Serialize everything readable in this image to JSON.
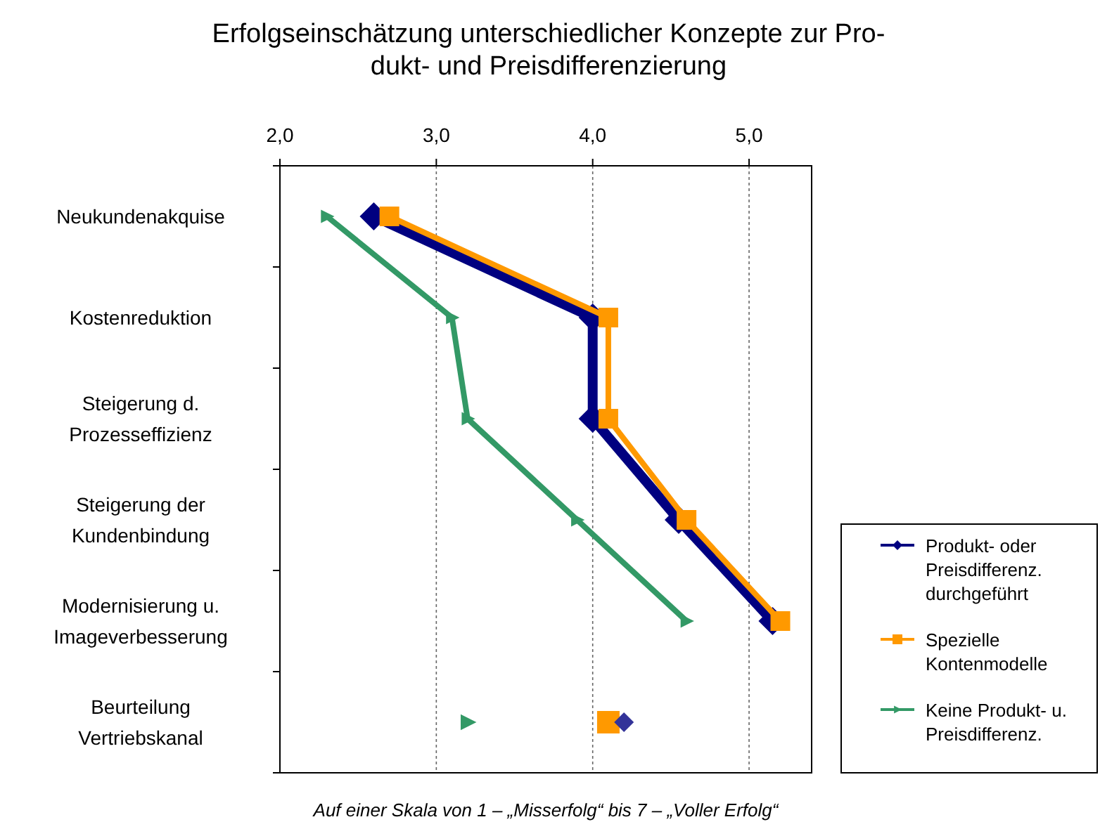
{
  "chart_data": {
    "type": "line",
    "orientation": "horizontal",
    "title": "Erfolgseinschätzung unterschiedlicher Konzepte zur Pro-\ndukt- und Preisdifferenzierung",
    "categories": [
      "Neukundenakquise",
      "Kostenreduktion",
      "Steigerung d. Prozesseffizienz",
      "Steigerung der Kundenbindung",
      "Modernisierung u. Imageverbesserung",
      "Beurteilung Vertriebskanal"
    ],
    "series": [
      {
        "name": "Produkt- oder Preisdifferenz. durchgeführt",
        "color": "#000080",
        "marker": "diamond",
        "values": [
          2.6,
          4.0,
          4.0,
          4.55,
          5.15,
          null
        ]
      },
      {
        "name": "Spezielle Kontenmodelle",
        "color": "#ff9900",
        "marker": "square",
        "values": [
          2.7,
          4.1,
          4.1,
          4.6,
          5.2,
          null
        ]
      },
      {
        "name": "Keine Produkt- u. Preisdifferenz.",
        "color": "#339966",
        "marker": "triangle",
        "values": [
          2.3,
          3.1,
          3.2,
          3.9,
          4.6,
          null
        ]
      },
      {
        "type": "scatter",
        "color": "#ff9900",
        "marker": "square",
        "values": [
          null,
          null,
          null,
          null,
          null,
          4.1
        ]
      },
      {
        "type": "scatter",
        "color": "#333399",
        "marker": "diamond",
        "values": [
          null,
          null,
          null,
          null,
          null,
          4.2
        ]
      },
      {
        "type": "scatter",
        "color": "#339966",
        "marker": "triangle",
        "values": [
          null,
          null,
          null,
          null,
          null,
          3.2
        ]
      }
    ],
    "xlim": [
      2,
      5.4
    ],
    "xticks": [
      {
        "value": 2,
        "label": "2,0"
      },
      {
        "value": 3,
        "label": "3,0"
      },
      {
        "value": 4,
        "label": "4,0"
      },
      {
        "value": 5,
        "label": "5,0"
      }
    ],
    "grid": "x",
    "legend": "right",
    "annotations": [
      "Auf einer Skala von 1 – „Misserfolg“ bis 7 – „Voller Erfolg“"
    ]
  }
}
